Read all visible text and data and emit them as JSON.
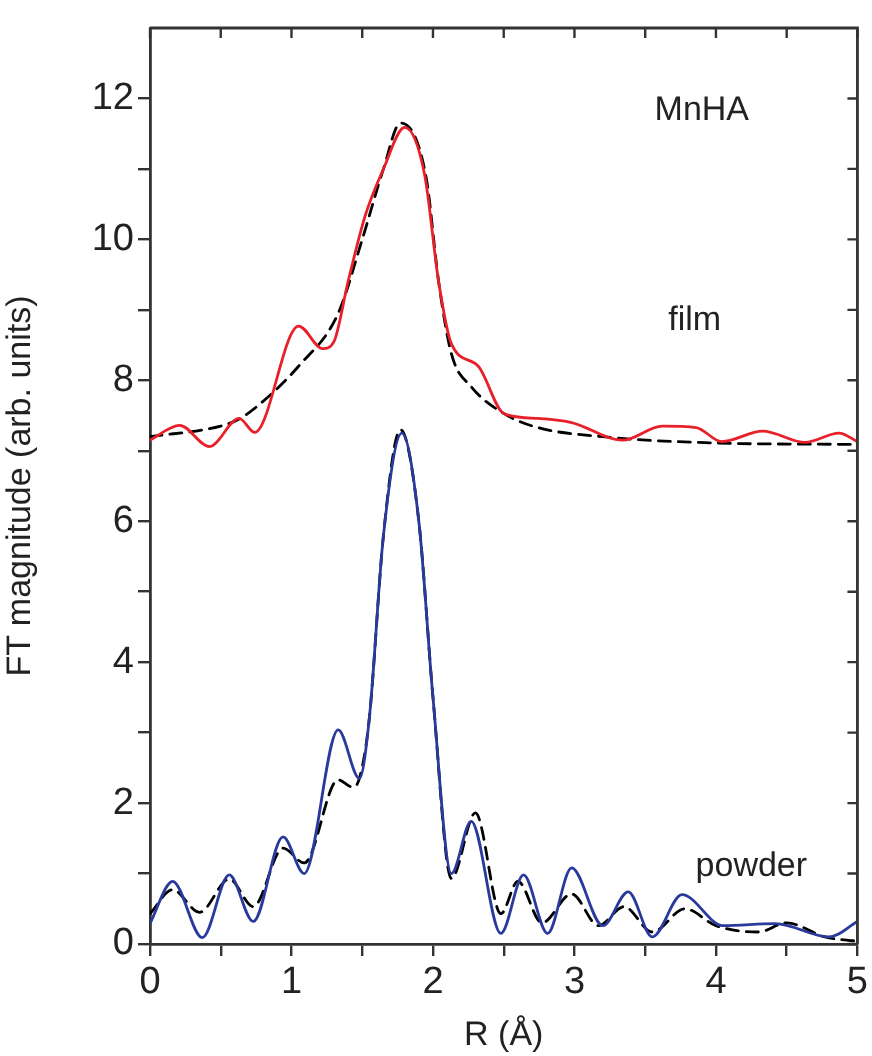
{
  "chart_data": {
    "type": "line",
    "xlabel": "R (Å)",
    "ylabel": "FT magnitude (arb. units)",
    "xlim": [
      0,
      5
    ],
    "ylim": [
      0,
      13
    ],
    "xticks": [
      0,
      {
        "value": 0.5,
        "label": null
      },
      1,
      {
        "value": 1.5,
        "label": null
      },
      2,
      {
        "value": 2.5,
        "label": null
      },
      3,
      {
        "value": 3.5,
        "label": null
      },
      4,
      {
        "value": 4.5,
        "label": null
      },
      5
    ],
    "yticks": [
      0,
      {
        "value": 1,
        "label": null
      },
      2,
      {
        "value": 3,
        "label": null
      },
      4,
      {
        "value": 5,
        "label": null
      },
      6,
      {
        "value": 7,
        "label": null
      },
      8,
      {
        "value": 9,
        "label": null
      },
      10,
      {
        "value": 11,
        "label": null
      },
      12
    ],
    "grid": false,
    "legend": false,
    "marker": "none",
    "annotations": [
      "MnHA",
      "film",
      "powder"
    ],
    "series": [
      {
        "color": "#e8202a",
        "line_style": "solid",
        "x": [
          0,
          0.21,
          0.42,
          0.63,
          0.74,
          1.05,
          1.22,
          1.3,
          1.4,
          1.52,
          1.65,
          1.8,
          1.94,
          2.04,
          2.13,
          2.32,
          2.5,
          2.74,
          2.98,
          3.34,
          3.62,
          3.86,
          4.04,
          4.33,
          4.63,
          4.87,
          5
        ],
        "values": [
          7.15,
          7.36,
          7.06,
          7.46,
          7.26,
          8.77,
          8.45,
          8.55,
          9.4,
          10.33,
          11.0,
          11.59,
          10.93,
          9.4,
          8.52,
          8.2,
          7.53,
          7.46,
          7.4,
          7.15,
          7.35,
          7.33,
          7.13,
          7.28,
          7.12,
          7.25,
          7.13
        ]
      },
      {
        "color": "#000000",
        "line_style": "dashed",
        "x": [
          0,
          0.5,
          0.63,
          0.81,
          1.05,
          1.33,
          1.5,
          1.65,
          1.77,
          1.95,
          2.04,
          2.13,
          2.27,
          2.5,
          2.74,
          3.2,
          4,
          5
        ],
        "values": [
          7.2,
          7.35,
          7.45,
          7.72,
          8.2,
          8.95,
          10.0,
          11.0,
          11.65,
          10.9,
          9.4,
          8.38,
          7.91,
          7.53,
          7.33,
          7.2,
          7.11,
          7.09
        ]
      },
      {
        "color": "#2a3a9c",
        "line_style": "solid",
        "x": [
          0,
          0.16,
          0.37,
          0.56,
          0.73,
          0.94,
          1.09,
          1.33,
          1.48,
          1.55,
          1.65,
          1.78,
          1.9,
          2.0,
          2.13,
          2.27,
          2.48,
          2.64,
          2.81,
          2.98,
          3.2,
          3.38,
          3.55,
          3.76,
          4.05,
          4.42,
          4.8,
          5
        ],
        "values": [
          0.29,
          0.89,
          0.09,
          0.98,
          0.32,
          1.52,
          1.0,
          3.04,
          2.35,
          3.2,
          5.8,
          7.25,
          6.0,
          3.5,
          1.0,
          1.74,
          0.15,
          0.98,
          0.15,
          1.08,
          0.26,
          0.74,
          0.1,
          0.7,
          0.26,
          0.29,
          0.1,
          0.32
        ]
      },
      {
        "color": "#000000",
        "line_style": "dashed",
        "x": [
          0,
          0.16,
          0.35,
          0.56,
          0.73,
          0.94,
          1.09,
          1.33,
          1.43,
          1.48,
          1.55,
          1.65,
          1.77,
          1.9,
          2.0,
          2.13,
          2.3,
          2.48,
          2.6,
          2.77,
          2.98,
          3.17,
          3.35,
          3.55,
          3.78,
          4.0,
          4.3,
          4.5,
          4.77,
          5
        ],
        "values": [
          0.43,
          0.77,
          0.45,
          0.92,
          0.53,
          1.36,
          1.15,
          2.33,
          2.23,
          2.35,
          3.2,
          5.8,
          7.3,
          6.0,
          3.5,
          0.93,
          1.86,
          0.43,
          0.89,
          0.3,
          0.71,
          0.26,
          0.53,
          0.17,
          0.5,
          0.26,
          0.17,
          0.3,
          0.1,
          0.04
        ]
      }
    ]
  }
}
